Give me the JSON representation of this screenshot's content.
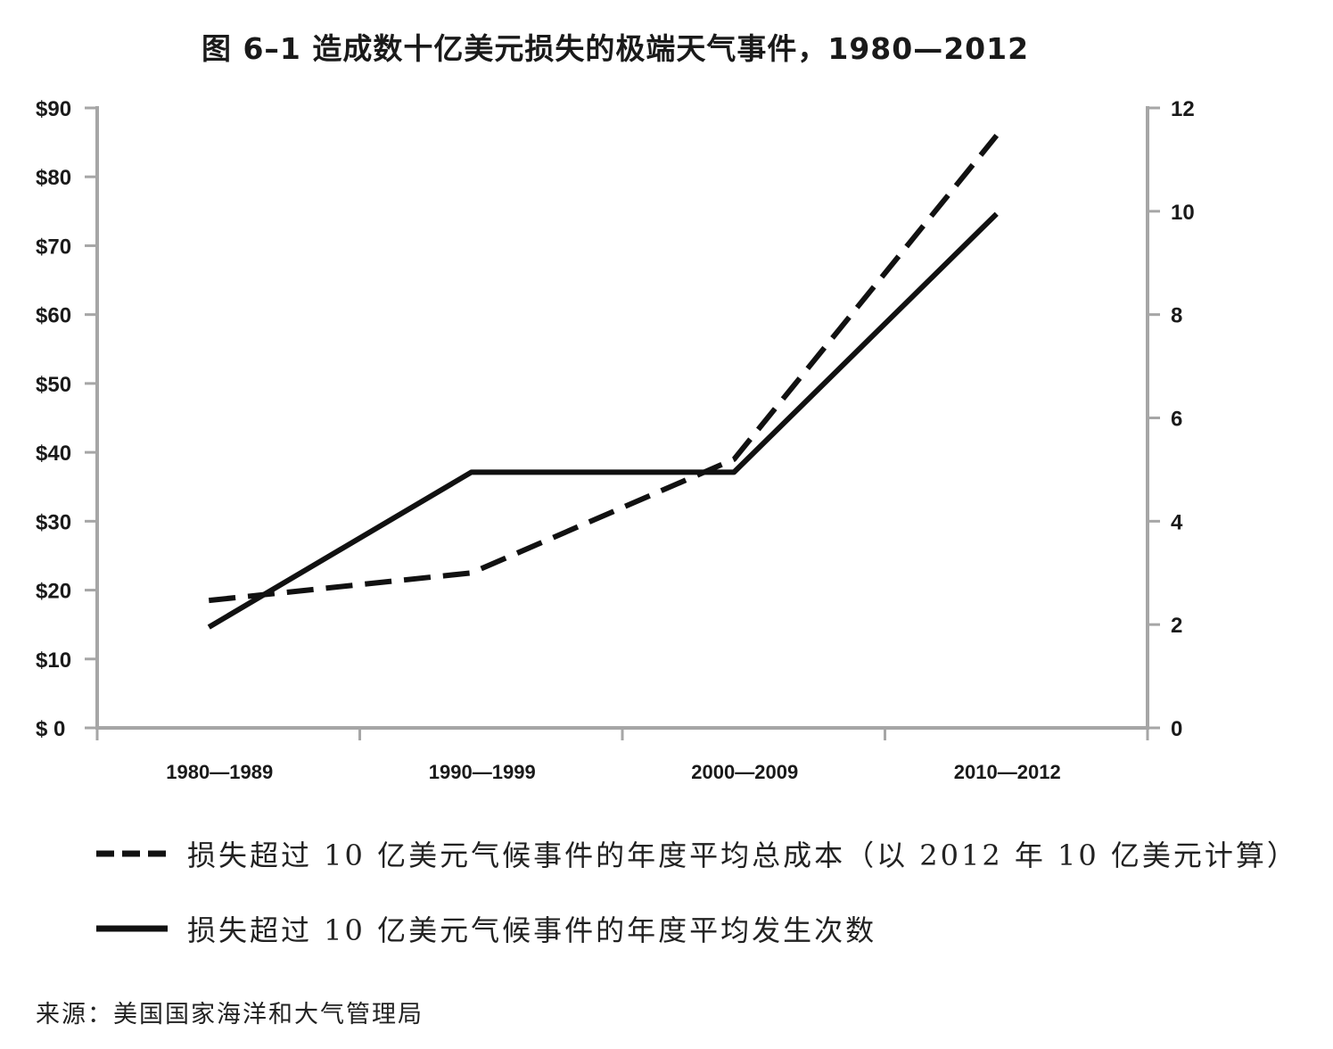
{
  "title": "图 6–1 造成数十亿美元损失的极端天气事件，1980—2012",
  "source": "来源：美国国家海洋和大气管理局",
  "chart_data": {
    "type": "line",
    "categories": [
      "1980—1989",
      "1990—1999",
      "2000—2009",
      "2010—2012"
    ],
    "left_axis": {
      "ticks": [
        "$ 0",
        "$10",
        "$20",
        "$30",
        "$40",
        "$50",
        "$60",
        "$70",
        "$80",
        "$90"
      ],
      "ylim": [
        0,
        90
      ]
    },
    "right_axis": {
      "ticks": [
        "0",
        "2",
        "4",
        "6",
        "8",
        "10",
        "12"
      ],
      "ylim": [
        0,
        12
      ]
    },
    "series": [
      {
        "name": "损失超过 10 亿美元气候事件的年度平均总成本（以 2012 年 10 亿美元计算）",
        "axis": "left",
        "style": "dashed",
        "values": [
          18.5,
          22.5,
          39,
          86
        ]
      },
      {
        "name": "损失超过 10 亿美元气候事件的年度平均发生次数",
        "axis": "right",
        "style": "solid",
        "values": [
          1.95,
          4.95,
          4.95,
          9.95
        ]
      }
    ],
    "grid": false,
    "legend_position": "bottom-left",
    "colors": {
      "lines": "#111111",
      "axes": "#a6a6a6"
    }
  }
}
